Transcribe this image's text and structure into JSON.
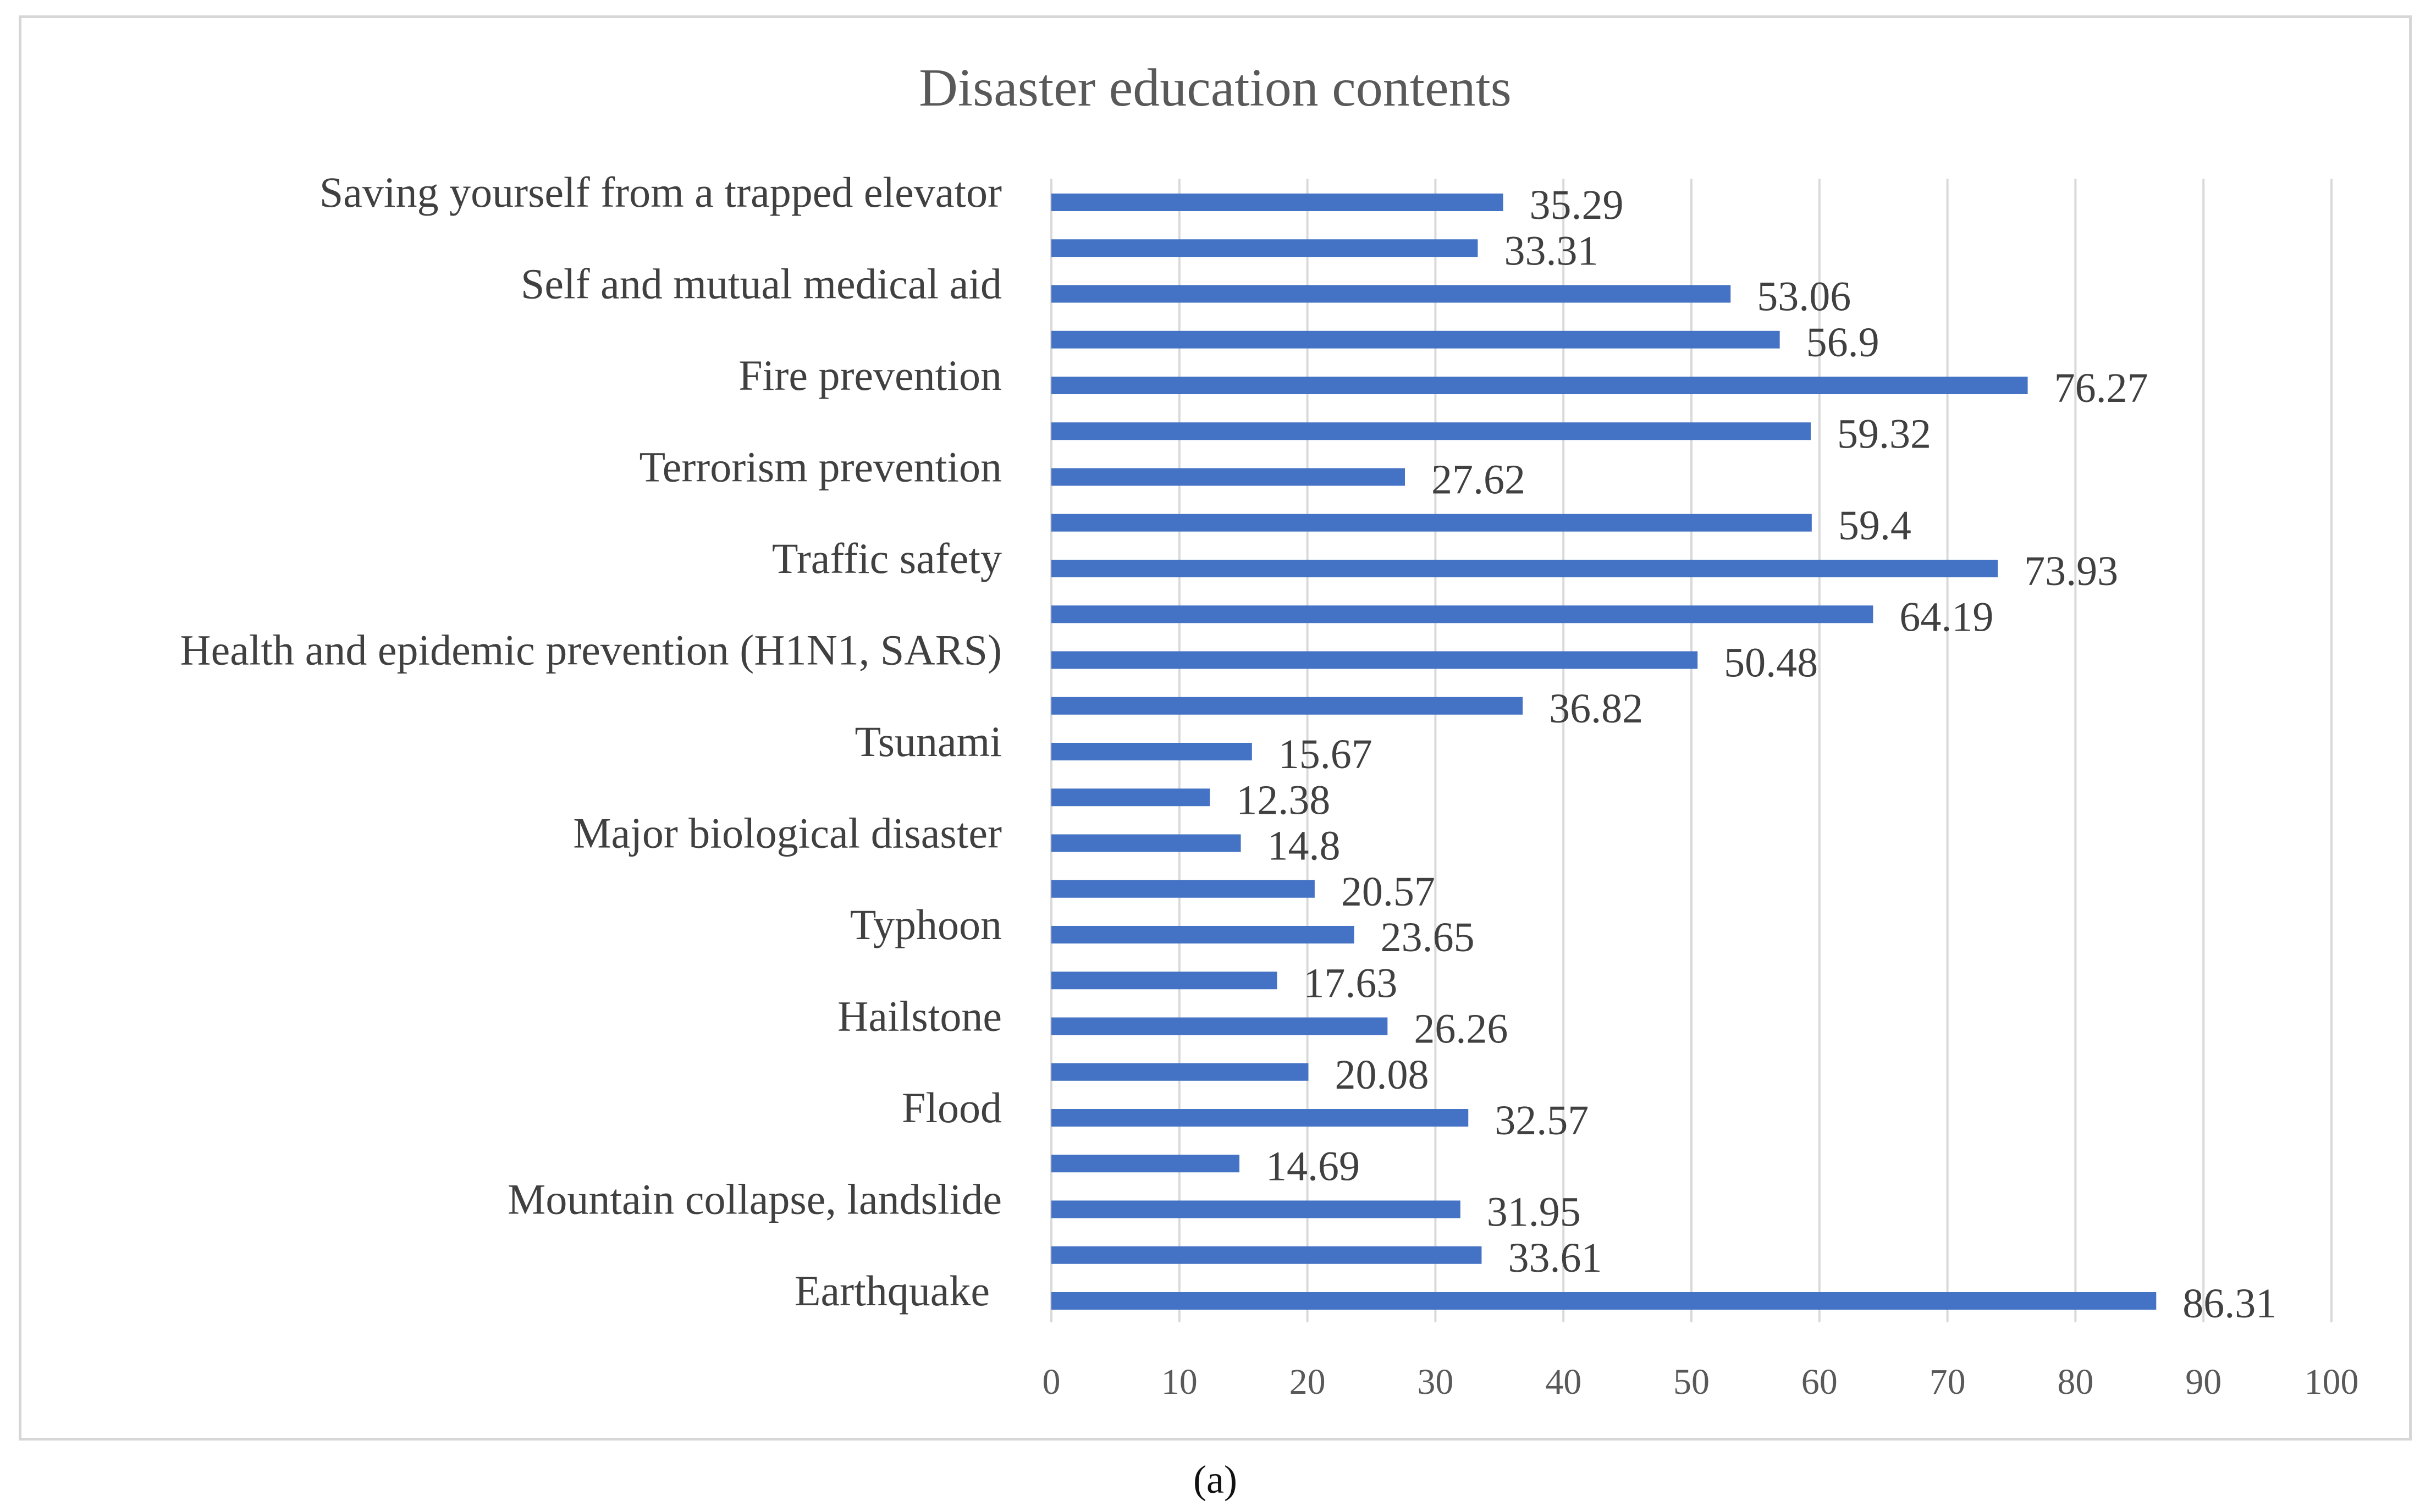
{
  "chart_data": {
    "type": "bar",
    "orientation": "horizontal",
    "title": "Disaster education contents",
    "caption": "(a)",
    "xlabel": "",
    "ylabel": "",
    "xlim": [
      0,
      100
    ],
    "xticks": [
      0,
      10,
      20,
      30,
      40,
      50,
      60,
      70,
      80,
      90,
      100
    ],
    "grid": "vertical",
    "legend": "none",
    "bar_color": "#4472c4",
    "bars": [
      {
        "label": "Saving yourself from a trapped elevator",
        "value": 35.29,
        "value_text": "35.29"
      },
      {
        "label": "",
        "value": 33.31,
        "value_text": "33.31"
      },
      {
        "label": "Self and mutual medical aid",
        "value": 53.06,
        "value_text": "53.06"
      },
      {
        "label": "",
        "value": 56.9,
        "value_text": "56.9"
      },
      {
        "label": "Fire prevention",
        "value": 76.27,
        "value_text": "76.27"
      },
      {
        "label": "",
        "value": 59.32,
        "value_text": "59.32"
      },
      {
        "label": "Terrorism prevention",
        "value": 27.62,
        "value_text": "27.62"
      },
      {
        "label": "",
        "value": 59.4,
        "value_text": "59.4"
      },
      {
        "label": "Traffic safety",
        "value": 73.93,
        "value_text": "73.93"
      },
      {
        "label": "",
        "value": 64.19,
        "value_text": "64.19"
      },
      {
        "label": "Health and epidemic prevention (H1N1, SARS)",
        "value": 50.48,
        "value_text": "50.48"
      },
      {
        "label": "",
        "value": 36.82,
        "value_text": "36.82"
      },
      {
        "label": "Tsunami",
        "value": 15.67,
        "value_text": "15.67"
      },
      {
        "label": "",
        "value": 12.38,
        "value_text": "12.38"
      },
      {
        "label": "Major biological disaster",
        "value": 14.8,
        "value_text": "14.8"
      },
      {
        "label": "",
        "value": 20.57,
        "value_text": "20.57"
      },
      {
        "label": "Typhoon",
        "value": 23.65,
        "value_text": "23.65"
      },
      {
        "label": "",
        "value": 17.63,
        "value_text": "17.63"
      },
      {
        "label": "Hailstone",
        "value": 26.26,
        "value_text": "26.26"
      },
      {
        "label": "",
        "value": 20.08,
        "value_text": "20.08"
      },
      {
        "label": "Flood",
        "value": 32.57,
        "value_text": "32.57"
      },
      {
        "label": "",
        "value": 14.69,
        "value_text": "14.69"
      },
      {
        "label": "Mountain collapse, landslide",
        "value": 31.95,
        "value_text": "31.95"
      },
      {
        "label": "",
        "value": 33.61,
        "value_text": "33.61"
      },
      {
        "label": "Earthquake",
        "value": 86.31,
        "value_text": "86.31"
      }
    ]
  }
}
